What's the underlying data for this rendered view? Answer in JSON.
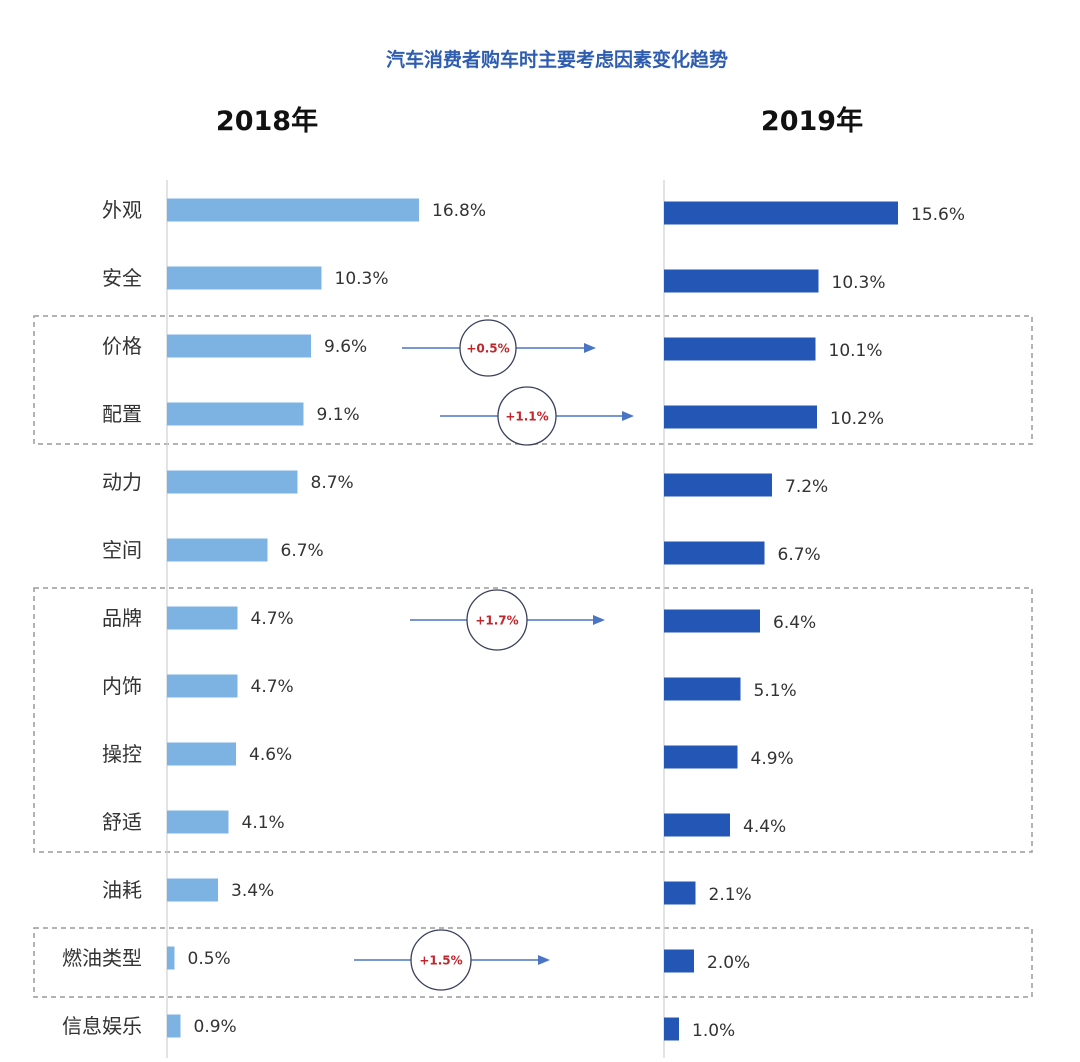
{
  "chart_data": {
    "type": "bar",
    "title": "汽车消费者购车时主要考虑因素变化趋势",
    "categories": [
      "外观",
      "安全",
      "价格",
      "配置",
      "动力",
      "空间",
      "品牌",
      "内饰",
      "操控",
      "舒适",
      "油耗",
      "燃油类型",
      "信息娱乐"
    ],
    "series": [
      {
        "name": "2018年",
        "values": [
          16.8,
          10.3,
          9.6,
          9.1,
          8.7,
          6.7,
          4.7,
          4.7,
          4.6,
          4.1,
          3.4,
          0.5,
          0.9
        ],
        "labels": [
          "16.8%",
          "10.3%",
          "9.6%",
          "9.1%",
          "8.7%",
          "6.7%",
          "4.7%",
          "4.7%",
          "4.6%",
          "4.1%",
          "3.4%",
          "0.5%",
          "0.9%"
        ],
        "color": "#7DB3E3"
      },
      {
        "name": "2019年",
        "values": [
          15.6,
          10.3,
          10.1,
          10.2,
          7.2,
          6.7,
          6.4,
          5.1,
          4.9,
          4.4,
          2.1,
          2.0,
          1.0
        ],
        "labels": [
          "15.6%",
          "10.3%",
          "10.1%",
          "10.2%",
          "7.2%",
          "6.7%",
          "6.4%",
          "5.1%",
          "4.9%",
          "4.4%",
          "2.1%",
          "2.0%",
          "1.0%"
        ],
        "color": "#2457B5"
      }
    ],
    "annotations": [
      {
        "text": "+0.5%",
        "category": "价格"
      },
      {
        "text": "+1.1%",
        "category": "配置"
      },
      {
        "text": "+1.7%",
        "category": "品牌"
      },
      {
        "text": "+1.5%",
        "category": "燃油类型"
      }
    ],
    "groups": [
      [
        "价格",
        "配置"
      ],
      [
        "品牌",
        "内饰",
        "操控",
        "舒适"
      ],
      [
        "燃油类型"
      ]
    ],
    "colors": {
      "title": "#2E5DB0",
      "badge_text": "#C0272D",
      "badge_ring": "#3A3F5C",
      "arrow": "#4A74C4",
      "group_border": "#9A9A9A",
      "text": "#333333"
    }
  }
}
